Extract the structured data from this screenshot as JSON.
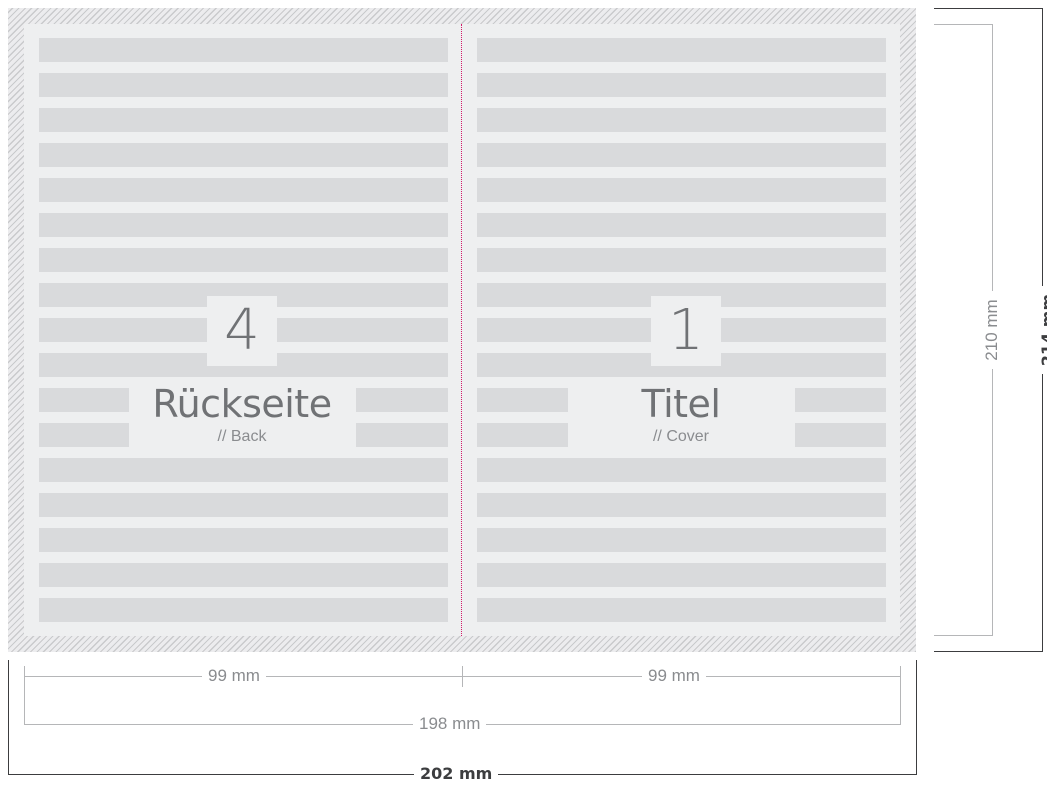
{
  "pages": {
    "back": {
      "number": "4",
      "title": "Rückseite",
      "subtitle": "// Back"
    },
    "cover": {
      "number": "1",
      "title": "Titel",
      "subtitle": "// Cover"
    }
  },
  "dimensions": {
    "left_panel_width": "99 mm",
    "right_panel_width": "99 mm",
    "trim_width": "198 mm",
    "bleed_width": "202 mm",
    "trim_height": "210 mm",
    "bleed_height": "214 mm"
  },
  "colors": {
    "fold_line": "#d4196a",
    "text_bar": "#d9dadc",
    "page_background": "#eeeff0",
    "label_text": "#707275"
  }
}
